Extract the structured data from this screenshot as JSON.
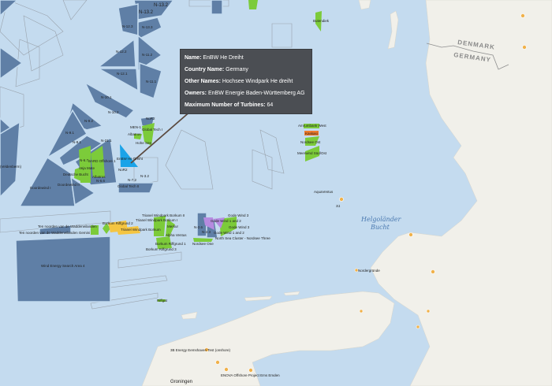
{
  "tooltip": {
    "rows": [
      {
        "key": "Name:",
        "value": "EnBW He Dreiht"
      },
      {
        "key": "Country Name:",
        "value": "Germany"
      },
      {
        "key": "Other Names:",
        "value": "Hochsee Windpark He dreiht"
      },
      {
        "key": "Owners:",
        "value": "EnBW Energie Baden-Württemberg AG"
      },
      {
        "key": "Maximum Number of Turbines:",
        "value": "64"
      }
    ]
  },
  "map": {
    "countries": [
      "DENMARK",
      "GERMANY"
    ],
    "sea_label": [
      "Helgoländer",
      "Bucht"
    ],
    "city": "Groningen",
    "colors": {
      "sea": "#c4dbef",
      "zone": "#5f7fa6",
      "operational": "#7ccb3a",
      "planned": "#f4c542",
      "construction": "#b68be0",
      "selected": "#1aa3e8",
      "land": "#f1f0ea"
    },
    "zones": [
      "N-13.2",
      "N-13.3",
      "N-12.3",
      "N-12.2",
      "N-11.2",
      "N-12.1",
      "N-11.1",
      "N-10.1",
      "N-10.2",
      "N-9.2",
      "N-9.1",
      "N-21.1",
      "N-6.7",
      "N-6.6",
      "N-7.2",
      "N-3.2"
    ],
    "labels": {
      "veldenberm": "(Veldenberm)",
      "doordewind1": "Doordewind I",
      "doordewind2": "Doordewind II",
      "bard": "BARD Offshore 1",
      "veja": "Veja Mate",
      "deutsche": "Deutsche Bucht",
      "albatros": "Albatros",
      "global1": "Global Tech I",
      "global2": "Global Tech II",
      "hohe": "Hohe See",
      "heDreiht": "EnBW He Dreiht",
      "nordlicht": "NoR2",
      "mein": "MEN-1",
      "butendiek": "Butendiek",
      "amrumbank": "Amrumbank West",
      "kaskasi": "Kaskasi",
      "nordsee_ost": "Nordsee Ost",
      "meerwind": "Meerwind Süd/Ost",
      "aquaventus": "AquaVentus",
      "s1": "S1",
      "nordergrunde": "Nordergründe",
      "tnw1": "Ten noorden van de Waddeneilanden",
      "tnw2": "Ten noorden van de Waddeneilanden Gemini",
      "borkum2": "Borkum Riffgrund 2",
      "trianel2": "Trianel Windpark Borkum II",
      "trianel1": "Trianel Windpark Borkum I",
      "trianel3": "Trianel Windpark Borkum",
      "merkur": "Merkur",
      "alpha": "Alpha Ventus",
      "borkumR1": "Borkum Riffgrund 1",
      "borkumR3": "Borkum Riffgrund 3",
      "n26": "N-2.6",
      "n23": "N-2.3",
      "nordseeOne": "Nordsee One",
      "gode3": "Gode Wind 3",
      "gode12": "Gode Wind 1 and 2",
      "gode3b": "Gode Wind 3",
      "gode12b": "Gode Wind 1 and 2",
      "nordsee3": "North Sea Cluster - Nordsee Three",
      "wesa4": "Wind Energy Search Area 4",
      "riffgat": "Riffgat",
      "eemshaven": "3B Energy Eemshaven Test (onshore)",
      "enova": "ENOVA Offshore Project Ems Emden"
    }
  }
}
